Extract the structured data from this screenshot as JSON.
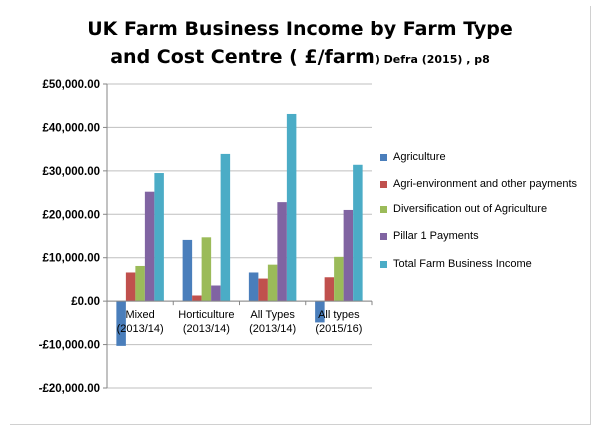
{
  "title_line1": "UK Farm Business Income by Farm Type",
  "title_line2": "and Cost Centre ( £/farm",
  "title_source": ") Defra (2015) , p8",
  "chart_data": {
    "type": "bar",
    "categories": [
      [
        "Mixed",
        "(2013/14)"
      ],
      [
        "Horticulture",
        "(2013/14)"
      ],
      [
        "All Types",
        "(2013/14)"
      ],
      [
        "All types",
        "(2015/16)"
      ]
    ],
    "ylim": [
      -20000,
      50000
    ],
    "yticks": [
      -20000,
      -10000,
      0,
      10000,
      20000,
      30000,
      40000,
      50000
    ],
    "ytick_labels": [
      "-£20,000.00",
      "-£10,000.00",
      "£0.00",
      "£10,000.00",
      "£20,000.00",
      "£30,000.00",
      "£40,000.00",
      "£50,000.00"
    ],
    "grid": true,
    "legend_position": "right",
    "series": [
      {
        "name": "Agriculture",
        "color": "#4a7ebb",
        "values": [
          -10300,
          14100,
          6600,
          -4900
        ]
      },
      {
        "name": "Agri-environment and other payments",
        "color": "#c0504d",
        "values": [
          6600,
          1300,
          5200,
          5500
        ]
      },
      {
        "name": "Diversification out of  Agriculture",
        "color": "#9bbb59",
        "values": [
          8100,
          14700,
          8400,
          10200
        ]
      },
      {
        "name": "Pillar 1 Payments",
        "color": "#8064a2",
        "values": [
          25200,
          3600,
          22800,
          21000
        ]
      },
      {
        "name": "Total Farm Business Income",
        "color": "#4bacc6",
        "values": [
          29500,
          33900,
          43100,
          31400
        ]
      }
    ]
  }
}
